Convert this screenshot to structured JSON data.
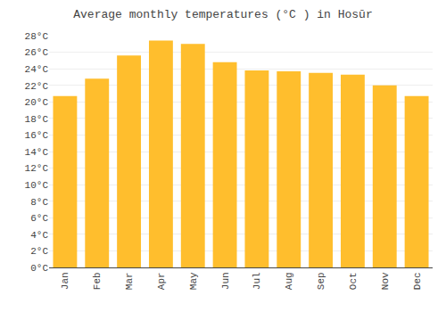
{
  "chart_data": {
    "type": "bar",
    "title": "Average monthly temperatures (°C ) in Hosūr",
    "categories": [
      "Jan",
      "Feb",
      "Mar",
      "Apr",
      "May",
      "Jun",
      "Jul",
      "Aug",
      "Sep",
      "Oct",
      "Nov",
      "Dec"
    ],
    "values": [
      20.7,
      22.8,
      25.6,
      27.4,
      27.0,
      24.8,
      23.8,
      23.7,
      23.5,
      23.3,
      22.0,
      20.7
    ],
    "color": "#FFBE2D",
    "ylim": [
      0,
      28
    ],
    "yticks": [
      {
        "value": 0,
        "label": "0°C"
      },
      {
        "value": 2,
        "label": "2°C"
      },
      {
        "value": 4,
        "label": "4°C"
      },
      {
        "value": 6,
        "label": "6°C"
      },
      {
        "value": 8,
        "label": "8°C"
      },
      {
        "value": 10,
        "label": "10°C"
      },
      {
        "value": 12,
        "label": "12°C"
      },
      {
        "value": 14,
        "label": "14°C"
      },
      {
        "value": 16,
        "label": "16°C"
      },
      {
        "value": 18,
        "label": "18°C"
      },
      {
        "value": 20,
        "label": "20°C"
      },
      {
        "value": 22,
        "label": "22°C"
      },
      {
        "value": 24,
        "label": "24°C"
      },
      {
        "value": 26,
        "label": "26°C"
      },
      {
        "value": 28,
        "label": "28°C"
      }
    ],
    "grid": true
  }
}
